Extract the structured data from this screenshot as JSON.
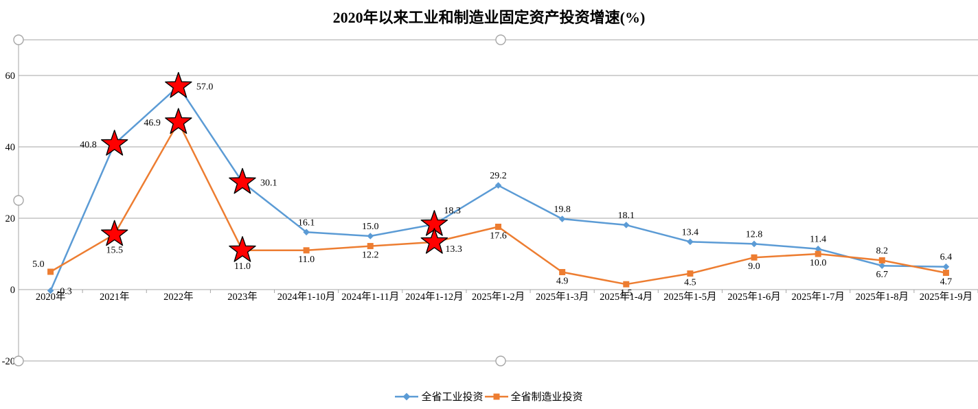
{
  "chart_data": {
    "type": "line",
    "title": "2020年以来工业和制造业固定资产投资增速(%)",
    "categories": [
      "2020年",
      "2021年",
      "2022年",
      "2023年",
      "2024年1-10月",
      "2024年1-11月",
      "2024年1-12月",
      "2025年1-2月",
      "2025年1-3月",
      "2025年1-4月",
      "2025年1-5月",
      "2025年1-6月",
      "2025年1-7月",
      "2025年1-8月",
      "2025年1-9月"
    ],
    "series": [
      {
        "name": "全省工业投资",
        "color": "#5B9BD5",
        "marker": "diamond",
        "values": [
          -0.3,
          40.8,
          57.0,
          30.1,
          16.1,
          15.0,
          18.3,
          29.2,
          19.8,
          18.1,
          13.4,
          12.8,
          11.4,
          6.7,
          6.4
        ],
        "label_positions": [
          "right",
          "left",
          "right",
          "right",
          "above",
          "above",
          "above-right",
          "above",
          "above",
          "above",
          "above",
          "above",
          "above",
          "below",
          "above"
        ]
      },
      {
        "name": "全省制造业投资",
        "color": "#ED7D31",
        "marker": "square",
        "values": [
          5.0,
          15.5,
          46.9,
          11.0,
          11.0,
          12.2,
          13.3,
          17.6,
          4.9,
          1.5,
          4.5,
          9.0,
          10.0,
          8.2,
          4.7
        ],
        "label_positions": [
          "left-up",
          "below",
          "left",
          "below",
          "below",
          "below",
          "below-right",
          "below",
          "below",
          "below",
          "below",
          "below",
          "below",
          "above",
          "below"
        ]
      }
    ],
    "starred_category_indices": [
      1,
      2,
      3,
      6
    ],
    "star_color": "#FF0000",
    "y_axis": {
      "min": -20,
      "max": 70,
      "major_unit": 20,
      "tick_labels": [
        "-20",
        "0",
        "20",
        "40",
        "60"
      ]
    },
    "grid": true,
    "grid_color": "#A6A6A6",
    "legend_position": "bottom"
  },
  "selection_handles": [
    "top-left",
    "mid-left",
    "bottom-left",
    "top-center",
    "bottom-center"
  ]
}
